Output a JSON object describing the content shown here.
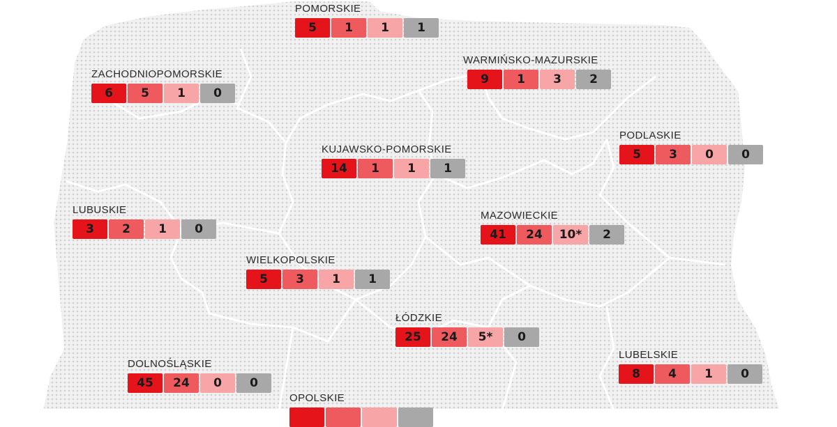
{
  "colors": {
    "level1": "#e5141b",
    "level2": "#ef5a5e",
    "level3": "#f7a5a7",
    "level4": "#a8a8a8",
    "land": "#e9e9e9",
    "border": "#ffffff"
  },
  "regions": {
    "pomorskie": {
      "name": "POMORSKIE",
      "values": [
        "5",
        "1",
        "1",
        "1"
      ]
    },
    "warminsko": {
      "name": "WARMIŃSKO-MAZURSKIE",
      "values": [
        "9",
        "1",
        "3",
        "2"
      ]
    },
    "zachodnio": {
      "name": "ZACHODNIOPOMORSKIE",
      "values": [
        "6",
        "5",
        "1",
        "0"
      ]
    },
    "kujawsko": {
      "name": "KUJAWSKO-POMORSKIE",
      "values": [
        "14",
        "1",
        "1",
        "1"
      ]
    },
    "podlaskie": {
      "name": "PODLASKIE",
      "values": [
        "5",
        "3",
        "0",
        "0"
      ]
    },
    "lubuskie": {
      "name": "LUBUSKIE",
      "values": [
        "3",
        "2",
        "1",
        "0"
      ]
    },
    "mazowieckie": {
      "name": "MAZOWIECKIE",
      "values": [
        "41",
        "24",
        "10*",
        "2"
      ]
    },
    "wielkopolskie": {
      "name": "WIELKOPOLSKIE",
      "values": [
        "5",
        "3",
        "1",
        "1"
      ]
    },
    "lodzkie": {
      "name": "ŁÓDZKIE",
      "values": [
        "25",
        "24",
        "5*",
        "0"
      ]
    },
    "dolnoslaskie": {
      "name": "DOLNOŚLĄSKIE",
      "values": [
        "45",
        "24",
        "0",
        "0"
      ]
    },
    "lubelskie": {
      "name": "LUBELSKIE",
      "values": [
        "8",
        "4",
        "1",
        "0"
      ]
    },
    "opolskie": {
      "name": "OPOLSKIE",
      "values": []
    }
  }
}
